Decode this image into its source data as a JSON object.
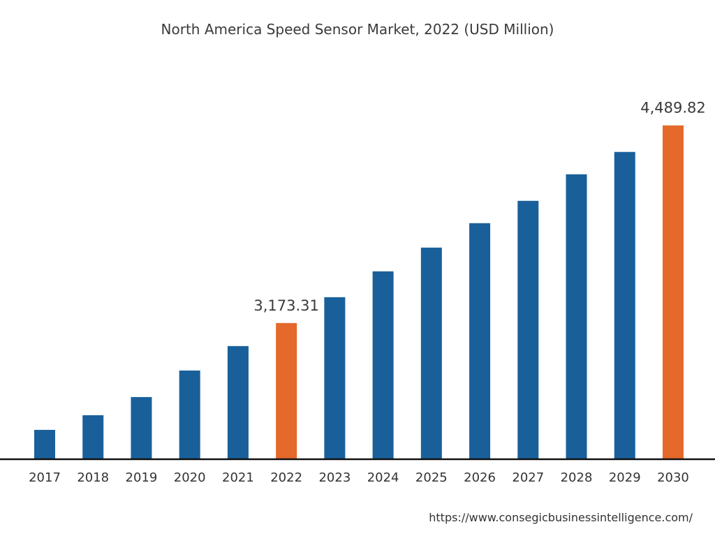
{
  "chart_data": {
    "type": "bar",
    "title": "North America Speed Sensor Market, 2022 (USD Million)",
    "xlabel": "",
    "ylabel": "",
    "categories": [
      "2017",
      "2018",
      "2019",
      "2020",
      "2021",
      "2022",
      "2023",
      "2024",
      "2025",
      "2026",
      "2027",
      "2028",
      "2029",
      "2030"
    ],
    "values": [
      2461.6,
      2559.3,
      2680.2,
      2857.0,
      3019.8,
      3173.31,
      3345.5,
      3517.6,
      3675.8,
      3838.6,
      3987.4,
      4164.2,
      4313.1,
      4489.82
    ],
    "data_labels": {
      "2022": "3,173.31",
      "2030": "4,489.82"
    },
    "highlighted": [
      "2022",
      "2030"
    ],
    "ylim": [
      2266,
      4600
    ],
    "grid": false,
    "y_axis_visible": false,
    "colors": {
      "default": "#19609b",
      "highlight": "#e4692a",
      "baseline": "#111111"
    }
  },
  "source": "https://www.consegicbusinessintelligence.com/"
}
